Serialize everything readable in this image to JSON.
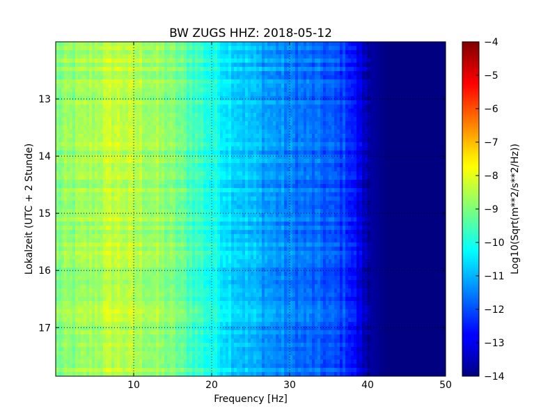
{
  "chart_data": {
    "type": "heatmap",
    "title": "BW ZUGS HHZ: 2018-05-12",
    "xlabel": "Frequency [Hz]",
    "ylabel": "Lokalzeit (UTC + 2 Stunde)",
    "colorbar_label": "Log10(Sqrt(m**2/s**2/Hz))",
    "xlim": [
      0,
      50
    ],
    "ylim": [
      17.85,
      12.0
    ],
    "x_ticks": [
      10,
      20,
      30,
      40,
      50
    ],
    "y_ticks": [
      13,
      14,
      15,
      16,
      17
    ],
    "colorbar_range": [
      -14,
      -4
    ],
    "colorbar_ticks": [
      -4,
      -5,
      -6,
      -7,
      -8,
      -9,
      -10,
      -11,
      -12,
      -13,
      -14
    ],
    "colormap": "jet",
    "grid": true,
    "frequency_hz": [
      0,
      2.5,
      5,
      7.5,
      10,
      12.5,
      15,
      17.5,
      20,
      22.5,
      25,
      27.5,
      30,
      32.5,
      35,
      37.5,
      40,
      42.5,
      45,
      47.5,
      50
    ],
    "typical_level_log10": [
      -9.0,
      -8.8,
      -8.6,
      -8.3,
      -8.5,
      -8.7,
      -9.0,
      -9.5,
      -10.0,
      -10.5,
      -10.9,
      -11.2,
      -11.5,
      -11.7,
      -11.9,
      -12.2,
      -13.6,
      -14.0,
      -14.0,
      -14.0,
      -14.0
    ]
  }
}
